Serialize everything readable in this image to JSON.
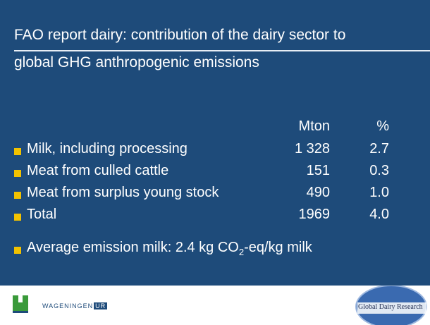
{
  "title_lines": [
    "FAO report dairy: contribution of the dairy sector to",
    "global GHG anthropogenic emissions"
  ],
  "table": {
    "header": [
      "Mton",
      "%"
    ],
    "rows": [
      [
        "Milk, including processing",
        "1 328",
        "2.7"
      ],
      [
        "Meat from culled cattle",
        "151",
        "0.3"
      ],
      [
        "Meat from surplus young stock",
        "490",
        "1.0"
      ],
      [
        "Total",
        "1969",
        "4.0"
      ]
    ]
  },
  "note": {
    "before": "Average emission milk: 2.4 kg CO",
    "sub": "2",
    "after": "-eq/kg milk"
  },
  "footer": {
    "left_logo": "WAGENINGEN",
    "left_logo_box": "UR",
    "right_logo": "Global Dairy Research"
  }
}
